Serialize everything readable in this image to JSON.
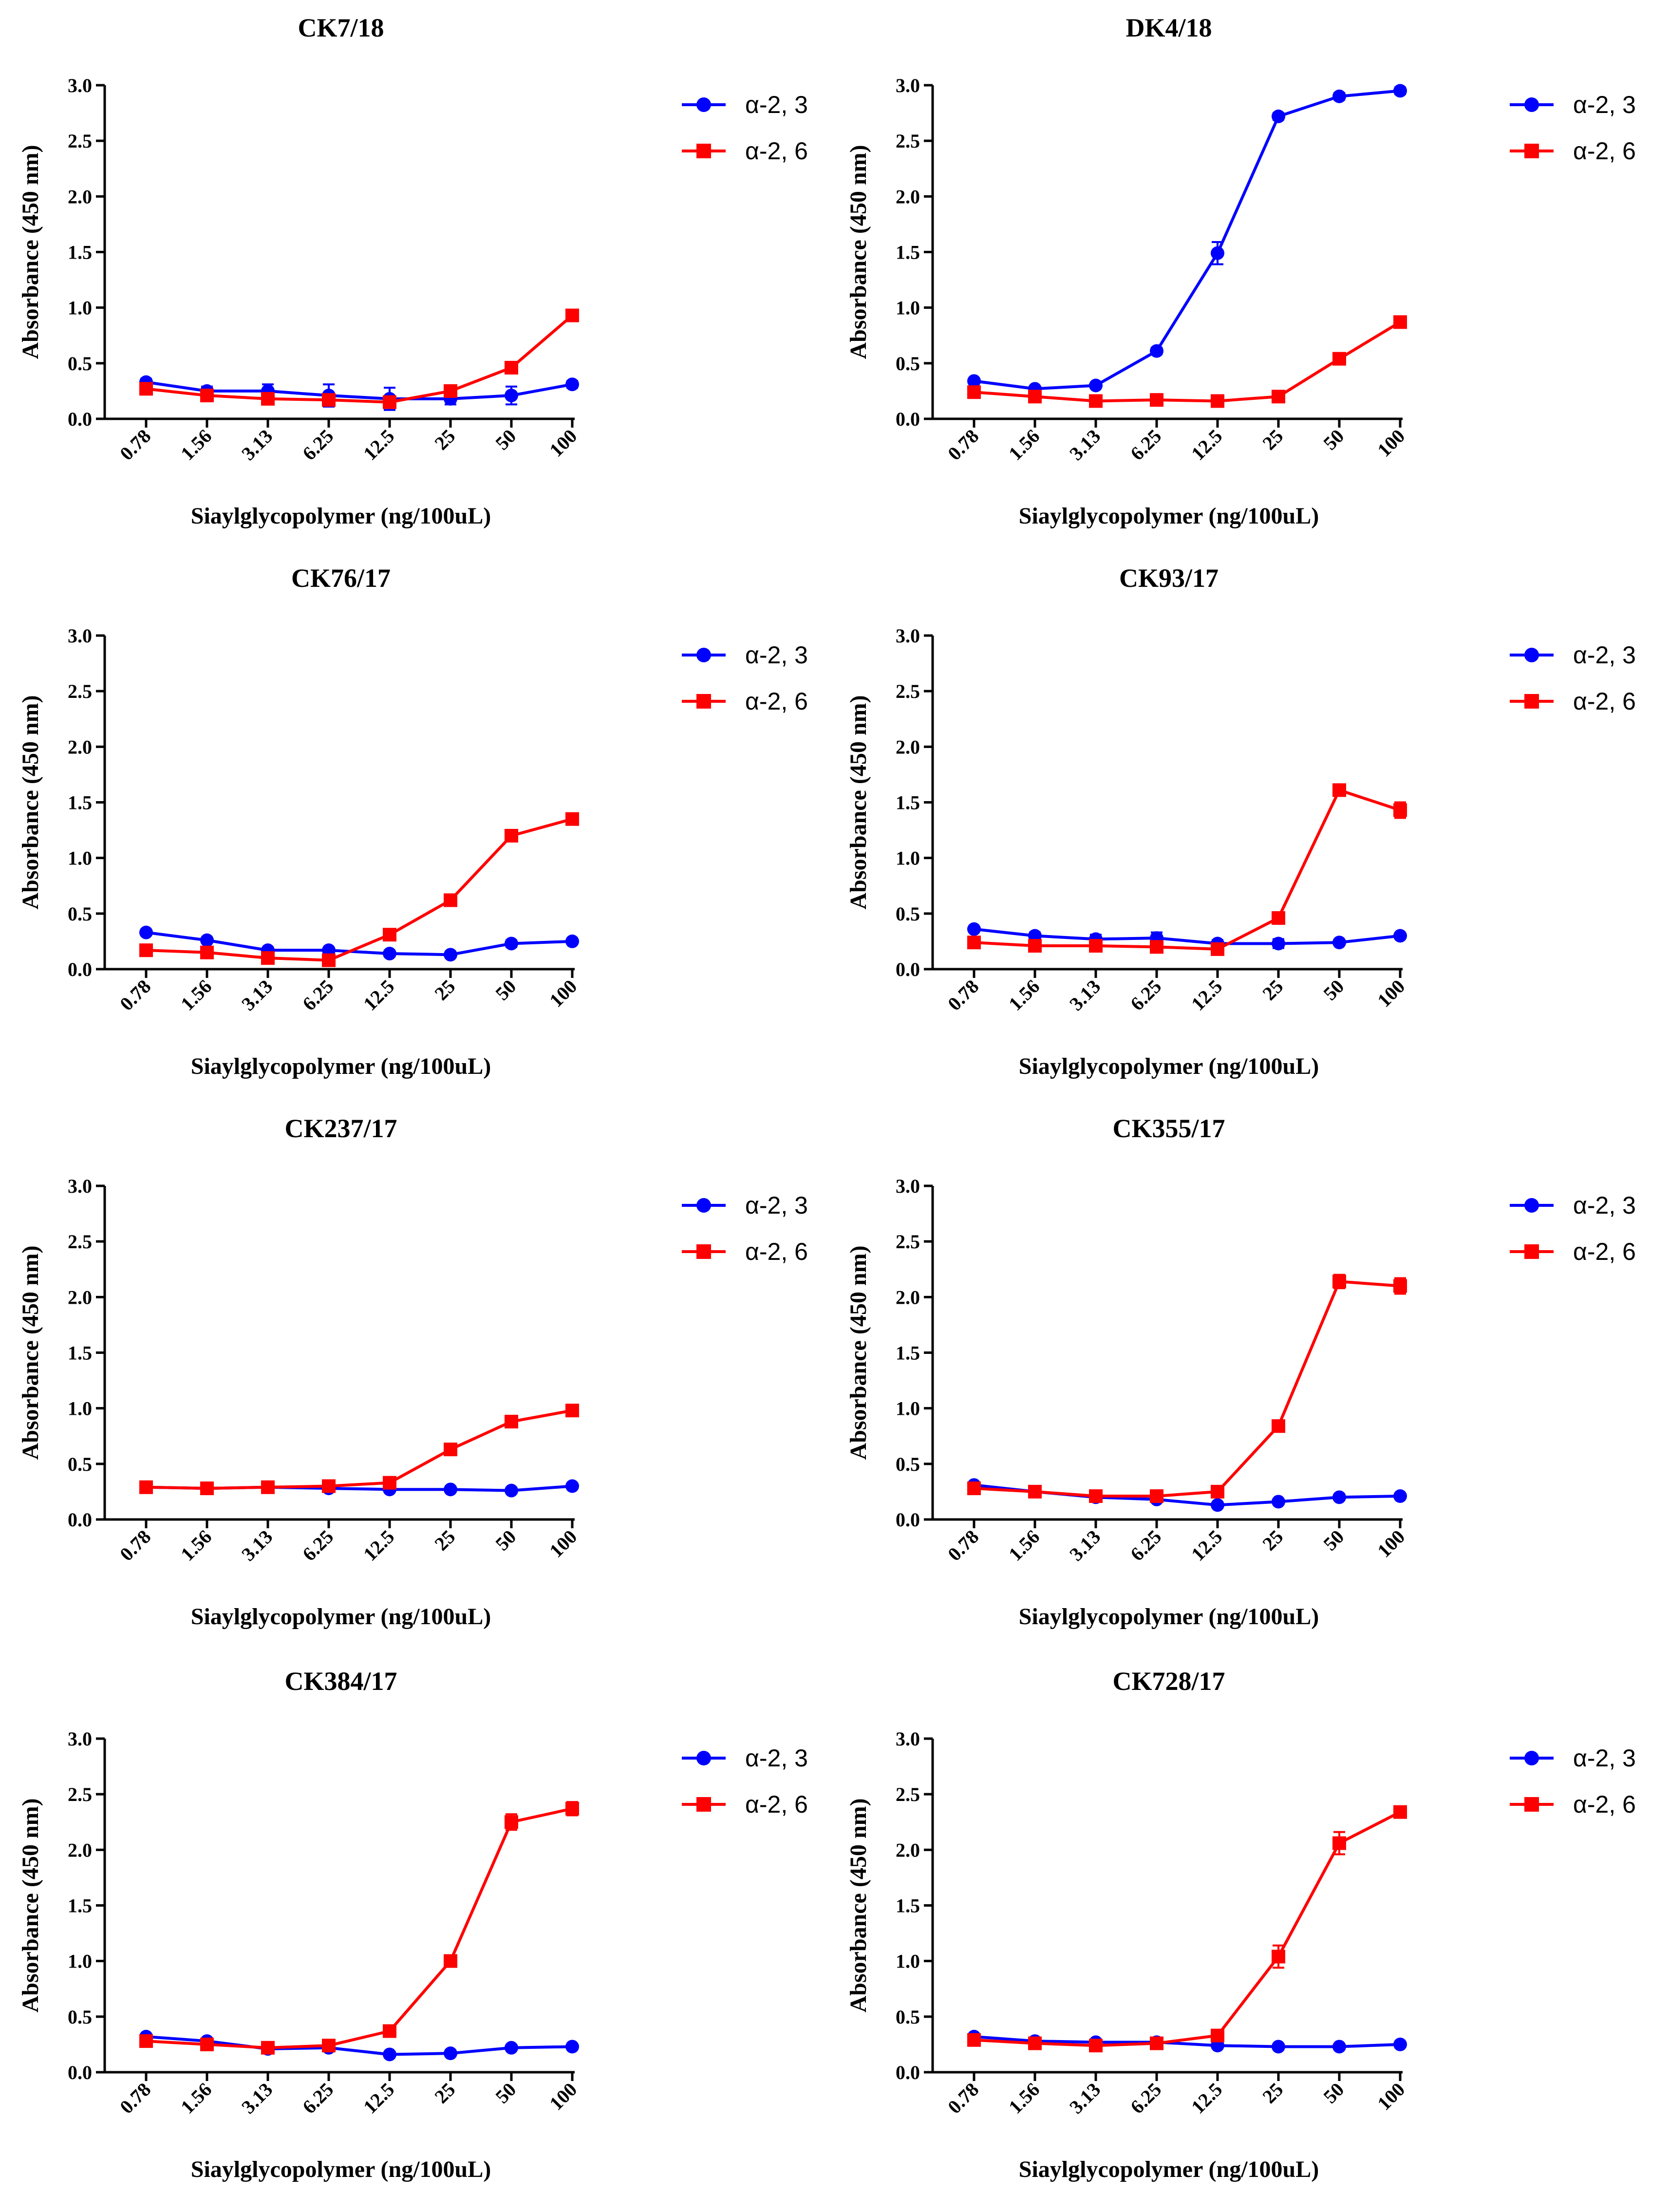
{
  "chart_data": [
    {
      "type": "line",
      "title": "CK7/18",
      "xlabel": "Siaylglycopolymer (ng/100uL)",
      "ylabel": "Absorbance (450 nm)",
      "categories": [
        "0.78",
        "1.56",
        "3.13",
        "6.25",
        "12.5",
        "25",
        "50",
        "100"
      ],
      "yticks": [
        "0.0",
        "0.5",
        "1.0",
        "1.5",
        "2.0",
        "2.5",
        "3.0"
      ],
      "ylim": [
        0,
        3
      ],
      "legend_position": "top-right",
      "series": [
        {
          "name": "α-2, 3",
          "color": "#0000ff",
          "marker": "circle",
          "values": [
            0.33,
            0.25,
            0.25,
            0.21,
            0.18,
            0.18,
            0.21,
            0.31
          ],
          "errors": [
            0.03,
            0.04,
            0.06,
            0.1,
            0.1,
            0.05,
            0.08,
            0.03
          ]
        },
        {
          "name": "α-2, 6",
          "color": "#ff0000",
          "marker": "square",
          "values": [
            0.27,
            0.21,
            0.18,
            0.17,
            0.15,
            0.25,
            0.46,
            0.93
          ],
          "errors": [
            0.03,
            0.03,
            0.02,
            0.02,
            0.02,
            0.03,
            0.03,
            0.03
          ]
        }
      ]
    },
    {
      "type": "line",
      "title": "DK4/18",
      "xlabel": "Siaylglycopolymer (ng/100uL)",
      "ylabel": "Absorbance (450 nm)",
      "categories": [
        "0.78",
        "1.56",
        "3.13",
        "6.25",
        "12.5",
        "25",
        "50",
        "100"
      ],
      "yticks": [
        "0.0",
        "0.5",
        "1.0",
        "1.5",
        "2.0",
        "2.5",
        "3.0"
      ],
      "ylim": [
        0,
        3
      ],
      "legend_position": "top-right",
      "series": [
        {
          "name": "α-2, 3",
          "color": "#0000ff",
          "marker": "circle",
          "values": [
            0.34,
            0.27,
            0.3,
            0.61,
            1.49,
            2.72,
            2.9,
            2.95
          ],
          "errors": [
            0.02,
            0.02,
            0.02,
            0.03,
            0.1,
            0.03,
            0.03,
            0.03
          ]
        },
        {
          "name": "α-2, 6",
          "color": "#ff0000",
          "marker": "square",
          "values": [
            0.24,
            0.2,
            0.16,
            0.17,
            0.16,
            0.2,
            0.54,
            0.87
          ],
          "errors": [
            0.02,
            0.02,
            0.02,
            0.02,
            0.02,
            0.02,
            0.03,
            0.03
          ]
        }
      ]
    },
    {
      "type": "line",
      "title": "CK76/17",
      "xlabel": "Siaylglycopolymer (ng/100uL)",
      "ylabel": "Absorbance (450 nm)",
      "categories": [
        "0.78",
        "1.56",
        "3.13",
        "6.25",
        "12.5",
        "25",
        "50",
        "100"
      ],
      "yticks": [
        "0.0",
        "0.5",
        "1.0",
        "1.5",
        "2.0",
        "2.5",
        "3.0"
      ],
      "ylim": [
        0,
        3
      ],
      "legend_position": "top-right",
      "series": [
        {
          "name": "α-2, 3",
          "color": "#0000ff",
          "marker": "circle",
          "values": [
            0.33,
            0.26,
            0.17,
            0.17,
            0.14,
            0.13,
            0.23,
            0.25
          ],
          "errors": [
            0.02,
            0.02,
            0.02,
            0.02,
            0.02,
            0.02,
            0.03,
            0.02
          ]
        },
        {
          "name": "α-2, 6",
          "color": "#ff0000",
          "marker": "square",
          "values": [
            0.17,
            0.15,
            0.1,
            0.08,
            0.31,
            0.62,
            1.2,
            1.35
          ],
          "errors": [
            0.02,
            0.02,
            0.02,
            0.02,
            0.02,
            0.03,
            0.03,
            0.03
          ]
        }
      ]
    },
    {
      "type": "line",
      "title": "CK93/17",
      "xlabel": "Siaylglycopolymer (ng/100uL)",
      "ylabel": "Absorbance (450 nm)",
      "categories": [
        "0.78",
        "1.56",
        "3.13",
        "6.25",
        "12.5",
        "25",
        "50",
        "100"
      ],
      "yticks": [
        "0.0",
        "0.5",
        "1.0",
        "1.5",
        "2.0",
        "2.5",
        "3.0"
      ],
      "ylim": [
        0,
        3
      ],
      "legend_position": "top-right",
      "series": [
        {
          "name": "α-2, 3",
          "color": "#0000ff",
          "marker": "circle",
          "values": [
            0.36,
            0.3,
            0.27,
            0.28,
            0.23,
            0.23,
            0.24,
            0.3
          ],
          "errors": [
            0.02,
            0.03,
            0.04,
            0.05,
            0.03,
            0.04,
            0.02,
            0.02
          ]
        },
        {
          "name": "α-2, 6",
          "color": "#ff0000",
          "marker": "square",
          "values": [
            0.24,
            0.21,
            0.21,
            0.2,
            0.18,
            0.46,
            1.61,
            1.43
          ],
          "errors": [
            0.02,
            0.02,
            0.02,
            0.02,
            0.02,
            0.04,
            0.03,
            0.07
          ]
        }
      ]
    },
    {
      "type": "line",
      "title": "CK237/17",
      "xlabel": "Siaylglycopolymer (ng/100uL)",
      "ylabel": "Absorbance (450 nm)",
      "categories": [
        "0.78",
        "1.56",
        "3.13",
        "6.25",
        "12.5",
        "25",
        "50",
        "100"
      ],
      "yticks": [
        "0.0",
        "0.5",
        "1.0",
        "1.5",
        "2.0",
        "2.5",
        "3.0"
      ],
      "ylim": [
        0,
        3
      ],
      "legend_position": "top-right",
      "series": [
        {
          "name": "α-2, 3",
          "color": "#0000ff",
          "marker": "circle",
          "values": [
            0.29,
            0.28,
            0.29,
            0.28,
            0.27,
            0.27,
            0.26,
            0.3
          ],
          "errors": [
            0.02,
            0.02,
            0.02,
            0.02,
            0.02,
            0.02,
            0.02,
            0.02
          ]
        },
        {
          "name": "α-2, 6",
          "color": "#ff0000",
          "marker": "square",
          "values": [
            0.29,
            0.28,
            0.29,
            0.3,
            0.33,
            0.63,
            0.88,
            0.98
          ],
          "errors": [
            0.02,
            0.02,
            0.02,
            0.02,
            0.02,
            0.03,
            0.03,
            0.03
          ]
        }
      ]
    },
    {
      "type": "line",
      "title": "CK355/17",
      "xlabel": "Siaylglycopolymer (ng/100uL)",
      "ylabel": "Absorbance (450 nm)",
      "categories": [
        "0.78",
        "1.56",
        "3.13",
        "6.25",
        "12.5",
        "25",
        "50",
        "100"
      ],
      "yticks": [
        "0.0",
        "0.5",
        "1.0",
        "1.5",
        "2.0",
        "2.5",
        "3.0"
      ],
      "ylim": [
        0,
        3
      ],
      "legend_position": "top-right",
      "series": [
        {
          "name": "α-2, 3",
          "color": "#0000ff",
          "marker": "circle",
          "values": [
            0.31,
            0.25,
            0.2,
            0.18,
            0.13,
            0.16,
            0.2,
            0.21
          ],
          "errors": [
            0.02,
            0.02,
            0.02,
            0.02,
            0.02,
            0.02,
            0.02,
            0.02
          ]
        },
        {
          "name": "α-2, 6",
          "color": "#ff0000",
          "marker": "square",
          "values": [
            0.28,
            0.25,
            0.21,
            0.21,
            0.25,
            0.84,
            2.14,
            2.1
          ],
          "errors": [
            0.02,
            0.02,
            0.02,
            0.02,
            0.02,
            0.03,
            0.06,
            0.07
          ]
        }
      ]
    },
    {
      "type": "line",
      "title": "CK384/17",
      "xlabel": "Siaylglycopolymer (ng/100uL)",
      "ylabel": "Absorbance (450 nm)",
      "categories": [
        "0.78",
        "1.56",
        "3.13",
        "6.25",
        "12.5",
        "25",
        "50",
        "100"
      ],
      "yticks": [
        "0.0",
        "0.5",
        "1.0",
        "1.5",
        "2.0",
        "2.5",
        "3.0"
      ],
      "ylim": [
        0,
        3
      ],
      "legend_position": "top-right",
      "series": [
        {
          "name": "α-2, 3",
          "color": "#0000ff",
          "marker": "circle",
          "values": [
            0.32,
            0.28,
            0.21,
            0.22,
            0.16,
            0.17,
            0.22,
            0.23
          ],
          "errors": [
            0.02,
            0.02,
            0.02,
            0.02,
            0.02,
            0.02,
            0.02,
            0.02
          ]
        },
        {
          "name": "α-2, 6",
          "color": "#ff0000",
          "marker": "square",
          "values": [
            0.28,
            0.25,
            0.22,
            0.24,
            0.37,
            1.0,
            2.25,
            2.37
          ],
          "errors": [
            0.02,
            0.02,
            0.02,
            0.02,
            0.02,
            0.03,
            0.07,
            0.06
          ]
        }
      ]
    },
    {
      "type": "line",
      "title": "CK728/17",
      "xlabel": "Siaylglycopolymer (ng/100uL)",
      "ylabel": "Absorbance (450 nm)",
      "categories": [
        "0.78",
        "1.56",
        "3.13",
        "6.25",
        "12.5",
        "25",
        "50",
        "100"
      ],
      "yticks": [
        "0.0",
        "0.5",
        "1.0",
        "1.5",
        "2.0",
        "2.5",
        "3.0"
      ],
      "ylim": [
        0,
        3
      ],
      "legend_position": "top-right",
      "series": [
        {
          "name": "α-2, 3",
          "color": "#0000ff",
          "marker": "circle",
          "values": [
            0.32,
            0.28,
            0.27,
            0.27,
            0.24,
            0.23,
            0.23,
            0.25
          ],
          "errors": [
            0.02,
            0.02,
            0.02,
            0.02,
            0.02,
            0.02,
            0.02,
            0.02
          ]
        },
        {
          "name": "α-2, 6",
          "color": "#ff0000",
          "marker": "square",
          "values": [
            0.29,
            0.26,
            0.24,
            0.26,
            0.33,
            1.04,
            2.06,
            2.34
          ],
          "errors": [
            0.02,
            0.02,
            0.02,
            0.02,
            0.03,
            0.1,
            0.1,
            0.03
          ]
        }
      ]
    }
  ]
}
